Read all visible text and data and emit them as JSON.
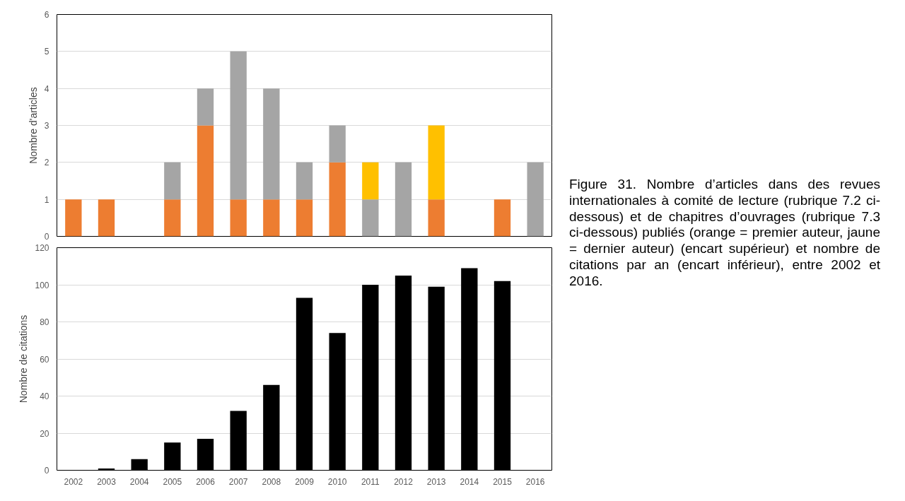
{
  "chart_data": [
    {
      "type": "bar",
      "stacked": true,
      "ylabel": "Nombre d'articles",
      "categories": [
        "2002",
        "2003",
        "2004",
        "2005",
        "2006",
        "2007",
        "2008",
        "2009",
        "2010",
        "2011",
        "2012",
        "2013",
        "2014",
        "2015",
        "2016"
      ],
      "series": [
        {
          "color": "#ed7d31",
          "values": [
            1,
            1,
            0,
            1,
            3,
            1,
            1,
            1,
            2,
            0,
            0,
            1,
            0,
            0,
            0
          ]
        },
        {
          "color": "#a5a5a5",
          "values": [
            0,
            0,
            0,
            1,
            1,
            4,
            3,
            1,
            1,
            1,
            2,
            0,
            0,
            0,
            2
          ]
        },
        {
          "color": "#ffc000",
          "values": [
            0,
            0,
            0,
            0,
            0,
            0,
            0,
            0,
            0,
            1,
            0,
            2,
            0,
            0,
            0
          ]
        },
        {
          "color": "#ed7d31",
          "values": [
            0,
            0,
            0,
            0,
            0,
            0,
            0,
            0,
            0,
            0,
            0,
            0,
            0,
            1,
            0
          ]
        }
      ],
      "ylim": [
        0,
        6
      ],
      "yticks": [
        0,
        1,
        2,
        3,
        4,
        5,
        6
      ],
      "grid": "y",
      "tick_labels": "y",
      "annotations": [
        "Figure 31. Nombre d’articles dans des revues internationales à comité de lecture (rubrique 7.2 ci-dessous) et de chapitres d’ouvrages (rubrique 7.3 ci-dessous) publiés (orange = premier auteur, jaune = dernier auteur) (encart supérieur) et nombre de citations par an (encart inférieur), entre 2002 et 2016."
      ]
    },
    {
      "type": "bar",
      "ylabel": "Nombre de citations",
      "categories": [
        "2002",
        "2003",
        "2004",
        "2005",
        "2006",
        "2007",
        "2008",
        "2009",
        "2010",
        "2011",
        "2012",
        "2013",
        "2014",
        "2015",
        "2016"
      ],
      "series": [
        {
          "color": "#000000",
          "values": [
            0,
            1,
            6,
            15,
            17,
            32,
            46,
            93,
            74,
            100,
            105,
            99,
            109,
            102,
            0
          ]
        }
      ],
      "ylim": [
        0,
        120
      ],
      "yticks": [
        0,
        20,
        40,
        60,
        80,
        100,
        120
      ],
      "grid": "y"
    }
  ]
}
